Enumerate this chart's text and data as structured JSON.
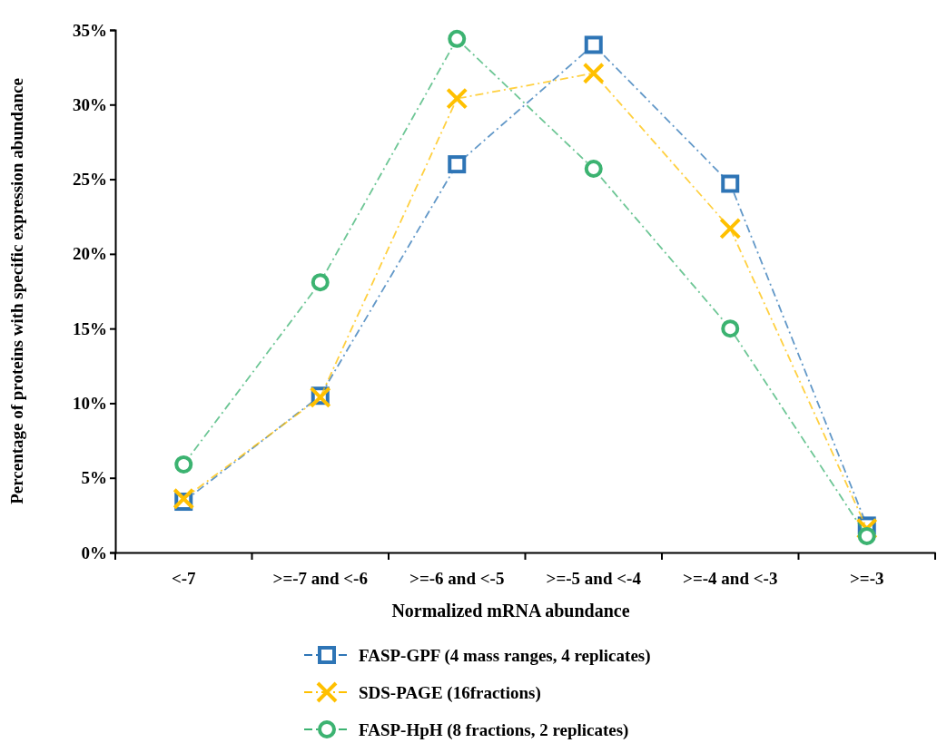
{
  "chart_data": {
    "type": "line",
    "xlabel": "Normalized mRNA abundance",
    "ylabel": "Percentage of proteins with specific expression abundance",
    "categories": [
      "<-7",
      ">=-7 and <-6",
      ">=-6 and <-5",
      ">=-5 and <-4",
      ">=-4 and <-3",
      ">=-3"
    ],
    "ylim": [
      0,
      35
    ],
    "yticks": [
      {
        "value": 0,
        "label": "0%"
      },
      {
        "value": 5,
        "label": "5%"
      },
      {
        "value": 10,
        "label": "10%"
      },
      {
        "value": 15,
        "label": "15%"
      },
      {
        "value": 20,
        "label": "20%"
      },
      {
        "value": 25,
        "label": "25%"
      },
      {
        "value": 30,
        "label": "30%"
      },
      {
        "value": 35,
        "label": "35%"
      }
    ],
    "grid": false,
    "legend": "bottom",
    "line_style": "dashed",
    "series": [
      {
        "name": "FASP-GPF (4 mass ranges, 4 replicates)",
        "color": "#2e75b6",
        "marker": "square",
        "values": [
          3.4,
          10.5,
          26.0,
          34.0,
          24.7,
          1.8
        ]
      },
      {
        "name": "SDS-PAGE (16fractions)",
        "color": "#ffc000",
        "marker": "cross",
        "values": [
          3.6,
          10.4,
          30.4,
          32.1,
          21.7,
          1.6
        ]
      },
      {
        "name": "FASP-HpH (8 fractions, 2 replicates)",
        "color": "#3cb371",
        "marker": "circle",
        "values": [
          5.9,
          18.1,
          34.4,
          25.7,
          15.0,
          1.1
        ]
      }
    ]
  }
}
